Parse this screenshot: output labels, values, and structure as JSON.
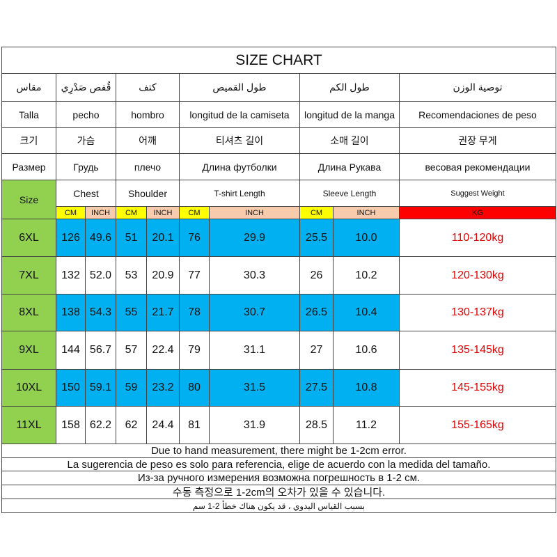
{
  "title": "SIZE CHART",
  "languages": [
    [
      "مقاس",
      "قُفص صَدْرِي",
      "كتف",
      "طول القميص",
      "طول الكم",
      "توصية الوزن"
    ],
    [
      "Talla",
      "pecho",
      "hombro",
      "longitud de la camiseta",
      "longitud de la manga",
      "Recomendaciones de peso"
    ],
    [
      "크기",
      "가슴",
      "어깨",
      "티셔츠 길이",
      "소매 길이",
      "권장 무게"
    ],
    [
      "Размер",
      "Грудь",
      "плечо",
      "Длина футболки",
      "Длина Рукава",
      "весовая рекомендации"
    ]
  ],
  "header": [
    "Size",
    "Chest",
    "Shoulder",
    "T-shirt Length",
    "Sleeve Length",
    "Suggest Weight"
  ],
  "units": [
    "CM",
    "INCH",
    "CM",
    "INCH",
    "CM",
    "INCH",
    "CM",
    "INCH",
    "KG"
  ],
  "rows": [
    [
      "6XL",
      "126",
      "49.6",
      "51",
      "20.1",
      "76",
      "29.9",
      "25.5",
      "10.0",
      "110-120kg"
    ],
    [
      "7XL",
      "132",
      "52.0",
      "53",
      "20.9",
      "77",
      "30.3",
      "26",
      "10.2",
      "120-130kg"
    ],
    [
      "8XL",
      "138",
      "54.3",
      "55",
      "21.7",
      "78",
      "30.7",
      "26.5",
      "10.4",
      "130-137kg"
    ],
    [
      "9XL",
      "144",
      "56.7",
      "57",
      "22.4",
      "79",
      "31.1",
      "27",
      "10.6",
      "135-145kg"
    ],
    [
      "10XL",
      "150",
      "59.1",
      "59",
      "23.2",
      "80",
      "31.5",
      "27.5",
      "10.8",
      "145-155kg"
    ],
    [
      "11XL",
      "158",
      "62.2",
      "62",
      "24.4",
      "81",
      "31.9",
      "28.5",
      "11.2",
      "155-165kg"
    ]
  ],
  "notes": [
    "Due to hand measurement, there might be 1-2cm error.",
    "La sugerencia de peso es solo para referencia, elige de acuerdo con la medida del tamaño.",
    "Из-за ручного измерения возможна погрешность в 1-2 см.",
    "수동 측정으로 1-2cm의 오차가 있을 수 있습니다.",
    "بسبب القياس اليدوي ، قد يكون هناك خطأ 2-1 سم"
  ]
}
